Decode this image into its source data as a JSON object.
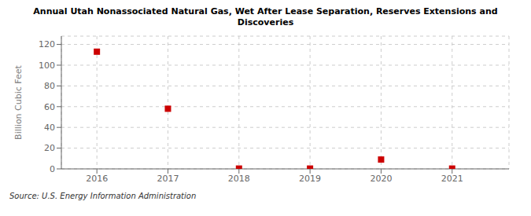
{
  "chart_data": {
    "type": "scatter",
    "title": "Annual Utah Nonassociated Natural Gas, Wet After Lease Separation, Reserves Extensions and\nDiscoveries",
    "ylabel": "Billion Cubic Feet",
    "source": "Source: U.S. Energy Information Administration",
    "x": [
      2016,
      2017,
      2018,
      2019,
      2020,
      2021
    ],
    "values": [
      113,
      58,
      0.3,
      0.3,
      9,
      0.3
    ],
    "color": "#cc0000",
    "marker": "square",
    "xlim": [
      2015.5,
      2021.8
    ],
    "ylim": [
      0,
      128
    ],
    "xticks": [
      2016,
      2017,
      2018,
      2019,
      2020,
      2021
    ],
    "yticks": [
      0,
      20,
      40,
      60,
      80,
      100,
      120
    ],
    "grid": true
  }
}
